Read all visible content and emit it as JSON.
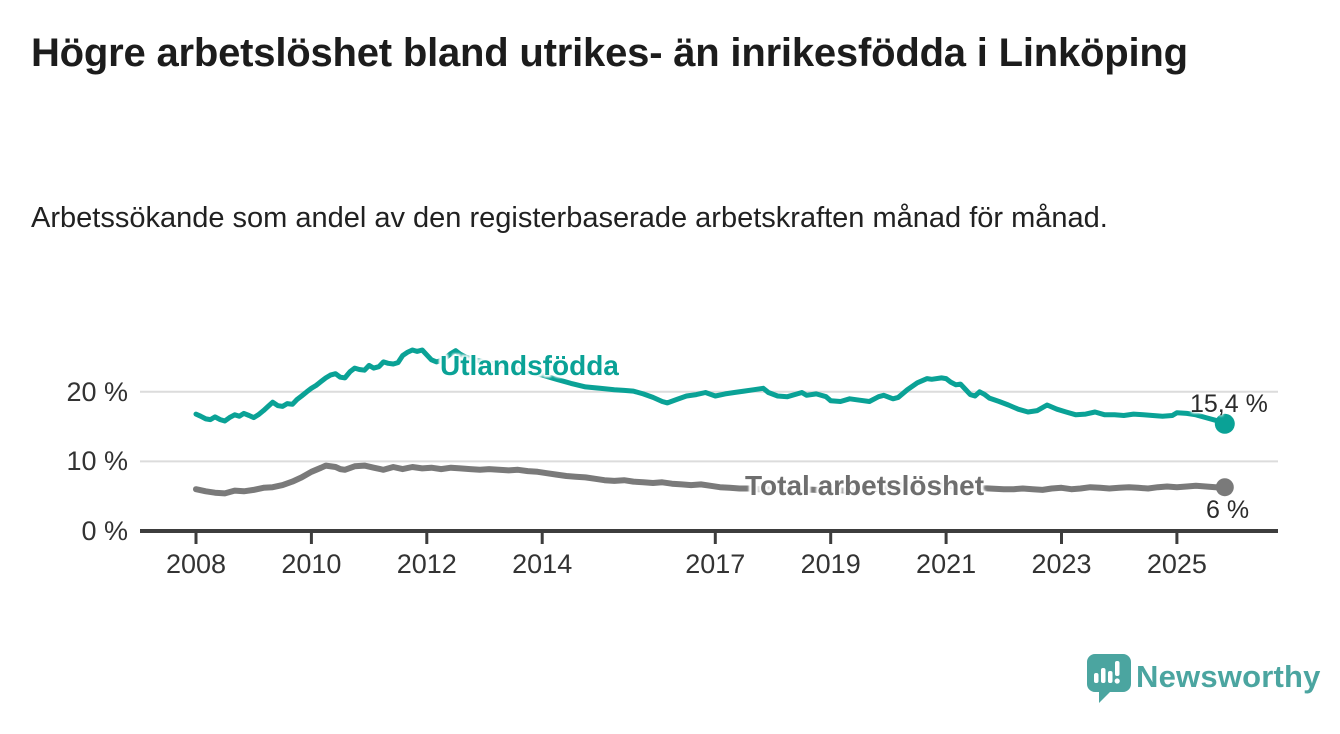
{
  "header": {
    "title": "Högre arbetslöshet bland utrikes- än inrikesfödda i Linköping",
    "subtitle": "Arbetssökande som andel av den registerbaserade arbetskraften månad för månad."
  },
  "chart_data": {
    "type": "line",
    "title": "Högre arbetslöshet bland utrikes- än inrikesfödda i Linköping",
    "xlabel": "",
    "ylabel": "",
    "x_axis": {
      "ticks": [
        2008,
        2010,
        2012,
        2014,
        2017,
        2019,
        2021,
        2023,
        2025
      ],
      "labels": [
        "2008",
        "2010",
        "2012",
        "2014",
        "2017",
        "2019",
        "2021",
        "2023",
        "2025"
      ],
      "range": [
        2007.0,
        2026.75
      ]
    },
    "y_axis": {
      "ticks": [
        0,
        10,
        20
      ],
      "labels": [
        "0 %",
        "10 %",
        "20 %"
      ],
      "gridlines": [
        10,
        20
      ],
      "range": [
        0,
        28
      ]
    },
    "grid": "horizontal-only",
    "legend_position": "inline-labels",
    "series": [
      {
        "name": "Total arbetslöshet",
        "color": "#7a7a7a",
        "label_color": "#6e6e6e",
        "line_width": 6,
        "end_dot_radius": 9,
        "end_label": "6 %",
        "points": [
          [
            2008.0,
            6.0
          ],
          [
            2008.17,
            5.7
          ],
          [
            2008.33,
            5.5
          ],
          [
            2008.5,
            5.4
          ],
          [
            2008.67,
            5.8
          ],
          [
            2008.83,
            5.7
          ],
          [
            2009.0,
            5.9
          ],
          [
            2009.17,
            6.2
          ],
          [
            2009.33,
            6.3
          ],
          [
            2009.5,
            6.6
          ],
          [
            2009.67,
            7.1
          ],
          [
            2009.83,
            7.7
          ],
          [
            2010.0,
            8.5
          ],
          [
            2010.17,
            9.1
          ],
          [
            2010.25,
            9.4
          ],
          [
            2010.42,
            9.2
          ],
          [
            2010.5,
            8.9
          ],
          [
            2010.58,
            8.8
          ],
          [
            2010.75,
            9.3
          ],
          [
            2010.92,
            9.4
          ],
          [
            2011.08,
            9.1
          ],
          [
            2011.25,
            8.8
          ],
          [
            2011.42,
            9.2
          ],
          [
            2011.58,
            8.9
          ],
          [
            2011.75,
            9.2
          ],
          [
            2011.92,
            9.0
          ],
          [
            2012.08,
            9.1
          ],
          [
            2012.25,
            8.9
          ],
          [
            2012.42,
            9.1
          ],
          [
            2012.58,
            9.0
          ],
          [
            2012.75,
            8.9
          ],
          [
            2012.92,
            8.8
          ],
          [
            2013.08,
            8.9
          ],
          [
            2013.25,
            8.8
          ],
          [
            2013.42,
            8.7
          ],
          [
            2013.58,
            8.8
          ],
          [
            2013.75,
            8.6
          ],
          [
            2013.92,
            8.5
          ],
          [
            2014.08,
            8.3
          ],
          [
            2014.25,
            8.1
          ],
          [
            2014.42,
            7.9
          ],
          [
            2014.58,
            7.8
          ],
          [
            2014.75,
            7.7
          ],
          [
            2014.92,
            7.5
          ],
          [
            2015.08,
            7.3
          ],
          [
            2015.25,
            7.2
          ],
          [
            2015.42,
            7.3
          ],
          [
            2015.58,
            7.1
          ],
          [
            2015.75,
            7.0
          ],
          [
            2015.92,
            6.9
          ],
          [
            2016.08,
            7.0
          ],
          [
            2016.25,
            6.8
          ],
          [
            2016.42,
            6.7
          ],
          [
            2016.58,
            6.6
          ],
          [
            2016.75,
            6.7
          ],
          [
            2016.92,
            6.5
          ],
          [
            2017.08,
            6.3
          ],
          [
            2017.25,
            6.2
          ],
          [
            2017.42,
            6.1
          ],
          [
            2017.58,
            6.1
          ],
          [
            2017.75,
            6.0
          ],
          [
            2018.0,
            6.0
          ],
          [
            2018.25,
            5.9
          ],
          [
            2018.5,
            6.0
          ],
          [
            2018.75,
            5.9
          ],
          [
            2019.0,
            5.9
          ],
          [
            2019.25,
            5.8
          ],
          [
            2019.5,
            5.9
          ],
          [
            2019.75,
            6.0
          ],
          [
            2020.0,
            6.2
          ],
          [
            2020.25,
            6.6
          ],
          [
            2020.5,
            6.7
          ],
          [
            2020.75,
            6.6
          ],
          [
            2021.0,
            6.5
          ],
          [
            2021.25,
            6.4
          ],
          [
            2021.5,
            6.2
          ],
          [
            2021.75,
            6.1
          ],
          [
            2022.0,
            6.0
          ],
          [
            2022.17,
            6.0
          ],
          [
            2022.33,
            6.1
          ],
          [
            2022.5,
            6.0
          ],
          [
            2022.67,
            5.9
          ],
          [
            2022.83,
            6.1
          ],
          [
            2023.0,
            6.2
          ],
          [
            2023.17,
            6.0
          ],
          [
            2023.33,
            6.1
          ],
          [
            2023.5,
            6.3
          ],
          [
            2023.67,
            6.2
          ],
          [
            2023.83,
            6.1
          ],
          [
            2024.0,
            6.2
          ],
          [
            2024.17,
            6.3
          ],
          [
            2024.33,
            6.2
          ],
          [
            2024.5,
            6.1
          ],
          [
            2024.67,
            6.3
          ],
          [
            2024.83,
            6.4
          ],
          [
            2025.0,
            6.3
          ],
          [
            2025.17,
            6.4
          ],
          [
            2025.33,
            6.5
          ],
          [
            2025.5,
            6.4
          ],
          [
            2025.67,
            6.3
          ],
          [
            2025.83,
            6.3
          ]
        ]
      },
      {
        "name": "Utlandsfödda",
        "color": "#0aa296",
        "label_color": "#0aa296",
        "line_width": 5,
        "end_dot_radius": 10,
        "end_label": "15,4 %",
        "points": [
          [
            2008.0,
            16.8
          ],
          [
            2008.08,
            16.5
          ],
          [
            2008.17,
            16.1
          ],
          [
            2008.25,
            16.0
          ],
          [
            2008.33,
            16.4
          ],
          [
            2008.42,
            16.0
          ],
          [
            2008.5,
            15.8
          ],
          [
            2008.58,
            16.3
          ],
          [
            2008.67,
            16.7
          ],
          [
            2008.75,
            16.5
          ],
          [
            2008.83,
            16.9
          ],
          [
            2008.92,
            16.6
          ],
          [
            2009.0,
            16.3
          ],
          [
            2009.08,
            16.7
          ],
          [
            2009.17,
            17.3
          ],
          [
            2009.25,
            17.9
          ],
          [
            2009.33,
            18.5
          ],
          [
            2009.42,
            18.0
          ],
          [
            2009.5,
            17.9
          ],
          [
            2009.58,
            18.3
          ],
          [
            2009.67,
            18.2
          ],
          [
            2009.75,
            18.9
          ],
          [
            2009.83,
            19.4
          ],
          [
            2009.92,
            20.0
          ],
          [
            2010.0,
            20.5
          ],
          [
            2010.08,
            20.9
          ],
          [
            2010.17,
            21.5
          ],
          [
            2010.25,
            22.0
          ],
          [
            2010.33,
            22.4
          ],
          [
            2010.42,
            22.6
          ],
          [
            2010.5,
            22.1
          ],
          [
            2010.58,
            22.0
          ],
          [
            2010.67,
            22.9
          ],
          [
            2010.75,
            23.4
          ],
          [
            2010.83,
            23.2
          ],
          [
            2010.92,
            23.1
          ],
          [
            2011.0,
            23.8
          ],
          [
            2011.08,
            23.4
          ],
          [
            2011.17,
            23.6
          ],
          [
            2011.25,
            24.3
          ],
          [
            2011.33,
            24.1
          ],
          [
            2011.42,
            24.0
          ],
          [
            2011.5,
            24.2
          ],
          [
            2011.58,
            25.2
          ],
          [
            2011.67,
            25.7
          ],
          [
            2011.75,
            26.0
          ],
          [
            2011.83,
            25.8
          ],
          [
            2011.92,
            26.0
          ],
          [
            2012.0,
            25.3
          ],
          [
            2012.08,
            24.6
          ],
          [
            2012.17,
            24.3
          ],
          [
            2012.25,
            24.5
          ],
          [
            2012.33,
            24.9
          ],
          [
            2012.42,
            25.5
          ],
          [
            2012.5,
            25.9
          ],
          [
            2012.58,
            25.4
          ],
          [
            2012.67,
            25.0
          ],
          [
            2012.83,
            24.6
          ],
          [
            2013.0,
            24.3
          ],
          [
            2013.25,
            23.9
          ],
          [
            2013.5,
            23.4
          ],
          [
            2013.75,
            22.9
          ],
          [
            2014.0,
            22.4
          ],
          [
            2014.25,
            21.8
          ],
          [
            2014.5,
            21.2
          ],
          [
            2014.75,
            20.7
          ],
          [
            2015.0,
            20.5
          ],
          [
            2015.25,
            20.3
          ],
          [
            2015.42,
            20.2
          ],
          [
            2015.58,
            20.1
          ],
          [
            2015.75,
            19.7
          ],
          [
            2015.92,
            19.2
          ],
          [
            2016.08,
            18.6
          ],
          [
            2016.17,
            18.4
          ],
          [
            2016.33,
            18.9
          ],
          [
            2016.5,
            19.4
          ],
          [
            2016.67,
            19.6
          ],
          [
            2016.83,
            19.9
          ],
          [
            2017.0,
            19.4
          ],
          [
            2017.17,
            19.7
          ],
          [
            2017.33,
            19.9
          ],
          [
            2017.5,
            20.1
          ],
          [
            2017.67,
            20.3
          ],
          [
            2017.83,
            20.5
          ],
          [
            2017.92,
            19.9
          ],
          [
            2018.08,
            19.4
          ],
          [
            2018.25,
            19.3
          ],
          [
            2018.42,
            19.7
          ],
          [
            2018.5,
            19.9
          ],
          [
            2018.58,
            19.5
          ],
          [
            2018.75,
            19.7
          ],
          [
            2018.92,
            19.3
          ],
          [
            2019.0,
            18.7
          ],
          [
            2019.17,
            18.6
          ],
          [
            2019.33,
            19.0
          ],
          [
            2019.5,
            18.8
          ],
          [
            2019.67,
            18.6
          ],
          [
            2019.83,
            19.3
          ],
          [
            2019.92,
            19.5
          ],
          [
            2020.08,
            19.0
          ],
          [
            2020.17,
            19.2
          ],
          [
            2020.33,
            20.3
          ],
          [
            2020.5,
            21.3
          ],
          [
            2020.67,
            21.9
          ],
          [
            2020.75,
            21.8
          ],
          [
            2020.92,
            22.0
          ],
          [
            2021.0,
            21.9
          ],
          [
            2021.08,
            21.4
          ],
          [
            2021.17,
            21.0
          ],
          [
            2021.25,
            21.1
          ],
          [
            2021.33,
            20.4
          ],
          [
            2021.42,
            19.6
          ],
          [
            2021.5,
            19.4
          ],
          [
            2021.58,
            20.0
          ],
          [
            2021.67,
            19.6
          ],
          [
            2021.75,
            19.1
          ],
          [
            2021.92,
            18.6
          ],
          [
            2022.08,
            18.1
          ],
          [
            2022.25,
            17.5
          ],
          [
            2022.42,
            17.1
          ],
          [
            2022.58,
            17.3
          ],
          [
            2022.75,
            18.1
          ],
          [
            2022.92,
            17.5
          ],
          [
            2023.08,
            17.1
          ],
          [
            2023.25,
            16.7
          ],
          [
            2023.42,
            16.8
          ],
          [
            2023.58,
            17.1
          ],
          [
            2023.75,
            16.7
          ],
          [
            2023.92,
            16.7
          ],
          [
            2024.08,
            16.6
          ],
          [
            2024.25,
            16.8
          ],
          [
            2024.42,
            16.7
          ],
          [
            2024.58,
            16.6
          ],
          [
            2024.75,
            16.5
          ],
          [
            2024.92,
            16.6
          ],
          [
            2025.0,
            17.0
          ],
          [
            2025.17,
            16.9
          ],
          [
            2025.33,
            16.7
          ],
          [
            2025.5,
            16.3
          ],
          [
            2025.67,
            15.9
          ],
          [
            2025.83,
            15.4
          ]
        ]
      }
    ],
    "colors": {
      "gridline": "#dcdcdc",
      "axis": "#3d3d3d",
      "tick_label": "#333333",
      "annotation": "#2b2b2b"
    }
  },
  "footer": {
    "brand": "Newsworthy",
    "brand_color": "#4ba5a0",
    "logo_icon": "bar-chart-speech-bubble-icon"
  }
}
